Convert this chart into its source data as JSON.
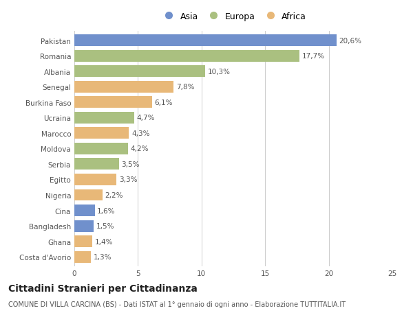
{
  "countries": [
    "Pakistan",
    "Romania",
    "Albania",
    "Senegal",
    "Burkina Faso",
    "Ucraina",
    "Marocco",
    "Moldova",
    "Serbia",
    "Egitto",
    "Nigeria",
    "Cina",
    "Bangladesh",
    "Ghana",
    "Costa d'Avorio"
  ],
  "values": [
    20.6,
    17.7,
    10.3,
    7.8,
    6.1,
    4.7,
    4.3,
    4.2,
    3.5,
    3.3,
    2.2,
    1.6,
    1.5,
    1.4,
    1.3
  ],
  "labels": [
    "20,6%",
    "17,7%",
    "10,3%",
    "7,8%",
    "6,1%",
    "4,7%",
    "4,3%",
    "4,2%",
    "3,5%",
    "3,3%",
    "2,2%",
    "1,6%",
    "1,5%",
    "1,4%",
    "1,3%"
  ],
  "continents": [
    "Asia",
    "Europa",
    "Europa",
    "Africa",
    "Africa",
    "Europa",
    "Africa",
    "Europa",
    "Europa",
    "Africa",
    "Africa",
    "Asia",
    "Asia",
    "Africa",
    "Africa"
  ],
  "colors": {
    "Asia": "#7090cc",
    "Europa": "#aac080",
    "Africa": "#e8b878"
  },
  "legend_order": [
    "Asia",
    "Europa",
    "Africa"
  ],
  "xlim": [
    0,
    25
  ],
  "xticks": [
    0,
    5,
    10,
    15,
    20,
    25
  ],
  "title": "Cittadini Stranieri per Cittadinanza",
  "subtitle": "COMUNE DI VILLA CARCINA (BS) - Dati ISTAT al 1° gennaio di ogni anno - Elaborazione TUTTITALIA.IT",
  "bg_color": "#ffffff",
  "bar_height": 0.75,
  "grid_color": "#cccccc",
  "text_color": "#555555",
  "label_fontsize": 7.5,
  "tick_fontsize": 7.5,
  "title_fontsize": 10,
  "subtitle_fontsize": 7
}
